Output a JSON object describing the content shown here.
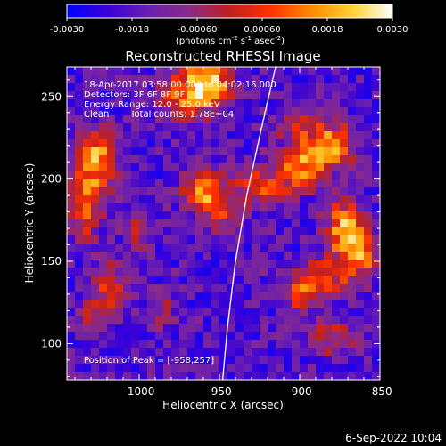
{
  "chart_data": {
    "type": "heatmap",
    "title": "Reconstructed RHESSI Image",
    "xlabel": "Heliocentric X (arcsec)",
    "ylabel": "Heliocentric Y (arcsec)",
    "xlim": [
      -1045,
      -850
    ],
    "ylim": [
      78,
      268
    ],
    "xticks": [
      -1000,
      -950,
      -900,
      -850
    ],
    "yticks": [
      100,
      150,
      200,
      250
    ],
    "colorbar": {
      "min": -0.003,
      "max": 0.003,
      "ticks": [
        -0.003,
        -0.0018,
        -0.0006,
        0.0006,
        0.0018,
        0.003
      ],
      "tick_labels": [
        "-0.0030",
        "-0.0018",
        "-0.00060",
        "0.00060",
        "0.0018",
        "0.0030"
      ],
      "units_pre": "(photons cm",
      "units_mid1": " s",
      "units_mid2": " asec",
      "units_end": ")",
      "exp1": "-2",
      "exp2": "-1",
      "exp3": "-2",
      "palette": [
        "#0000ff",
        "#3a00d8",
        "#6a1fb0",
        "#8a2a8a",
        "#c02020",
        "#ff3000",
        "#ff8a00",
        "#ffd030",
        "#ffffff"
      ]
    },
    "annotations": {
      "time_range": "18-Apr-2017 03:58:00.000 to 04:02:16.000",
      "detectors": "Detectors: 3F 6F 8F 9F",
      "energy": "Energy Range: 12.0 - 25.0 keV",
      "clean": "Clean",
      "total_counts": "Total counts: 1.78E+04",
      "peak": "Position of Peak = [-958,257]"
    },
    "limb_curve": [
      [
        -948,
        78
      ],
      [
        -945,
        110
      ],
      [
        -940,
        150
      ],
      [
        -933,
        190
      ],
      [
        -924,
        230
      ],
      [
        -915,
        268
      ]
    ],
    "sources": [
      {
        "x": -1030,
        "y": 200,
        "amp": 0.003,
        "sx": 9,
        "sy": 14
      },
      {
        "x": -1025,
        "y": 218,
        "amp": 0.002,
        "sx": 10,
        "sy": 8
      },
      {
        "x": -1035,
        "y": 175,
        "amp": 0.0018,
        "sx": 6,
        "sy": 10
      },
      {
        "x": -1018,
        "y": 133,
        "amp": 0.0022,
        "sx": 8,
        "sy": 12
      },
      {
        "x": -1032,
        "y": 115,
        "amp": 0.0016,
        "sx": 6,
        "sy": 8
      },
      {
        "x": -958,
        "y": 257,
        "amp": 0.0045,
        "sx": 10,
        "sy": 10
      },
      {
        "x": -975,
        "y": 250,
        "amp": 0.002,
        "sx": 10,
        "sy": 10
      },
      {
        "x": -960,
        "y": 192,
        "amp": 0.0035,
        "sx": 9,
        "sy": 9
      },
      {
        "x": -948,
        "y": 178,
        "amp": 0.0018,
        "sx": 7,
        "sy": 7
      },
      {
        "x": -1000,
        "y": 170,
        "amp": 0.0016,
        "sx": 6,
        "sy": 8
      },
      {
        "x": -925,
        "y": 196,
        "amp": 0.0024,
        "sx": 12,
        "sy": 8
      },
      {
        "x": -900,
        "y": 208,
        "amp": 0.003,
        "sx": 10,
        "sy": 10
      },
      {
        "x": -880,
        "y": 220,
        "amp": 0.0032,
        "sx": 10,
        "sy": 10
      },
      {
        "x": -900,
        "y": 232,
        "amp": 0.0018,
        "sx": 10,
        "sy": 6
      },
      {
        "x": -872,
        "y": 170,
        "amp": 0.0034,
        "sx": 8,
        "sy": 12
      },
      {
        "x": -862,
        "y": 155,
        "amp": 0.003,
        "sx": 8,
        "sy": 10
      },
      {
        "x": -885,
        "y": 140,
        "amp": 0.0024,
        "sx": 12,
        "sy": 8
      },
      {
        "x": -900,
        "y": 130,
        "amp": 0.0022,
        "sx": 8,
        "sy": 6
      },
      {
        "x": -880,
        "y": 104,
        "amp": 0.002,
        "sx": 9,
        "sy": 8
      },
      {
        "x": -985,
        "y": 120,
        "amp": 0.0012,
        "sx": 6,
        "sy": 8
      }
    ],
    "background": -0.0018
  },
  "footer": {
    "date": "6-Sep-2022 10:04"
  }
}
